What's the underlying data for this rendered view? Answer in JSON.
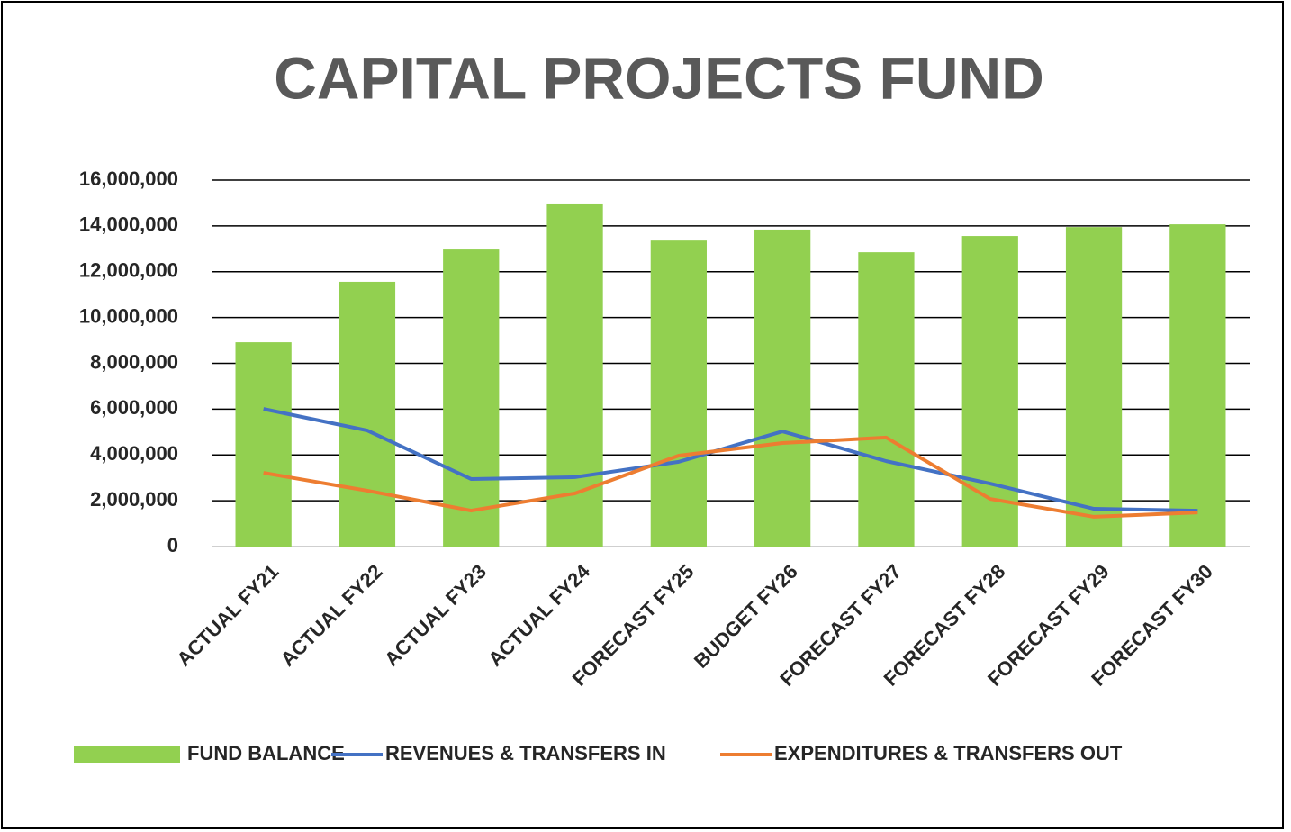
{
  "chart_data": {
    "type": "bar-line",
    "title": "CAPITAL PROJECTS FUND",
    "categories": [
      "ACTUAL FY21",
      "ACTUAL FY22",
      "ACTUAL FY23",
      "ACTUAL FY24",
      "FORECAST FY25",
      "BUDGET FY26",
      "FORECAST FY27",
      "FORECAST FY28",
      "FORECAST FY29",
      "FORECAST FY30"
    ],
    "series": [
      {
        "name": "FUND BALANCE",
        "type": "bar",
        "color": "#92d050",
        "values": [
          8920000,
          11560000,
          12970000,
          14940000,
          13360000,
          13840000,
          12850000,
          13560000,
          13950000,
          14070000
        ]
      },
      {
        "name": "REVENUES & TRANSFERS IN",
        "type": "line",
        "color": "#4472c4",
        "values": [
          6010000,
          5070000,
          2950000,
          3030000,
          3700000,
          5030000,
          3730000,
          2750000,
          1650000,
          1570000
        ]
      },
      {
        "name": "EXPENDITURES & TRANSFERS OUT",
        "type": "line",
        "color": "#ed7d31",
        "values": [
          3220000,
          2440000,
          1570000,
          2320000,
          3970000,
          4520000,
          4760000,
          2080000,
          1300000,
          1490000
        ]
      }
    ],
    "ylim": [
      0,
      16000000
    ],
    "yticks": [
      0,
      {
        "value": 2000000,
        "label": "2,000,000"
      },
      {
        "value": 4000000,
        "label": "4,000,000"
      },
      {
        "value": 6000000,
        "label": "6,000,000"
      },
      {
        "value": 8000000,
        "label": "8,000,000"
      },
      {
        "value": 10000000,
        "label": "10,000,000"
      },
      {
        "value": 12000000,
        "label": "12,000,000"
      },
      {
        "value": 14000000,
        "label": "14,000,000"
      },
      {
        "value": 16000000,
        "label": "16,000,000"
      }
    ],
    "grid": true,
    "legend": "bottom"
  }
}
